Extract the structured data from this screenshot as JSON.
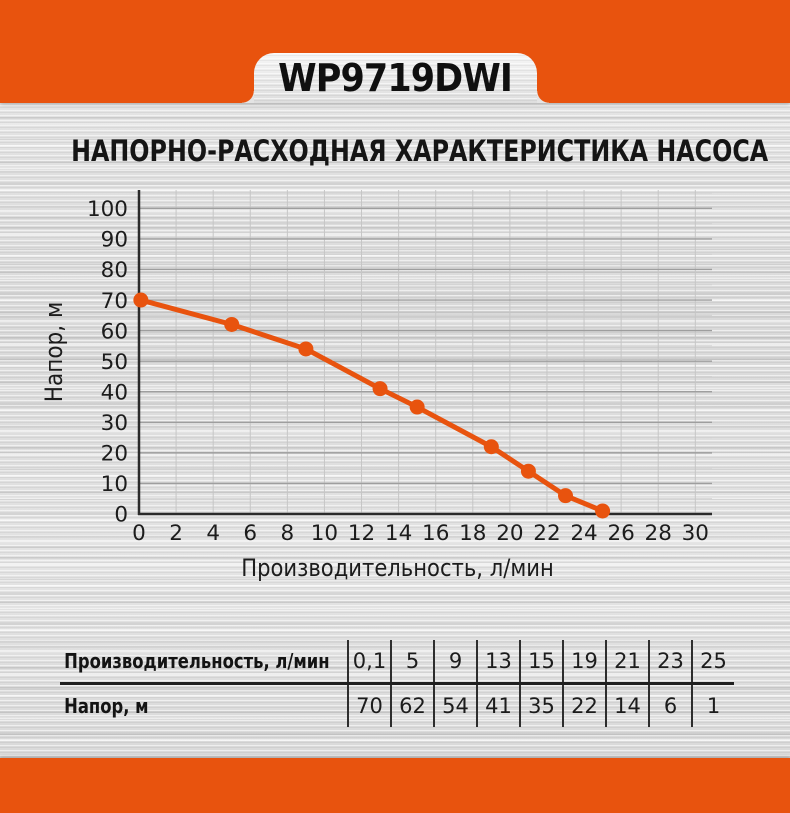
{
  "header": {
    "model": "WP9719DWI"
  },
  "title": "НАПОРНО-РАСХОДНАЯ ХАРАКТЕРИСТИКА НАСОСА",
  "colors": {
    "accent": "#e8530e",
    "axis": "#2b2b2b",
    "grid_major": "#9e9e9e",
    "grid_minor": "#d2d2d2",
    "grid_vertical": "#c6c6c6",
    "text": "#1c1c1c"
  },
  "chart_data": {
    "type": "line",
    "title": "",
    "xlabel": "Производительность, л/мин",
    "ylabel": "Напор, м",
    "x": [
      0.1,
      5,
      9,
      13,
      15,
      19,
      21,
      23,
      25
    ],
    "y": [
      70,
      62,
      54,
      41,
      35,
      22,
      14,
      6,
      1
    ],
    "xlim": [
      0,
      30.9
    ],
    "ylim": [
      0,
      106
    ],
    "x_ticks": [
      0,
      2,
      4,
      6,
      8,
      10,
      12,
      14,
      16,
      18,
      20,
      22,
      24,
      26,
      28,
      30
    ],
    "y_ticks": [
      0,
      10,
      20,
      30,
      40,
      50,
      60,
      70,
      80,
      90,
      100
    ],
    "grid": "vertical every 2; horizontal major every 10, minor every 5",
    "legend": "none",
    "line_color": "#e8530e",
    "marker": "circle"
  },
  "table": {
    "rows": [
      {
        "label": "Производительность, л/мин",
        "values": [
          "0,1",
          "5",
          "9",
          "13",
          "15",
          "19",
          "21",
          "23",
          "25"
        ]
      },
      {
        "label": "Напор, м",
        "values": [
          "70",
          "62",
          "54",
          "41",
          "35",
          "22",
          "14",
          "6",
          "1"
        ]
      }
    ]
  }
}
